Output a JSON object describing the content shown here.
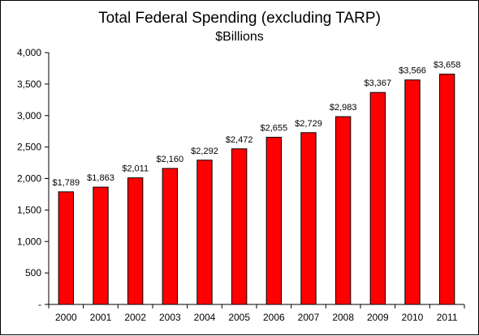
{
  "chart_data": {
    "type": "bar",
    "title": "Total Federal Spending (excluding TARP)",
    "subtitle": "$Billions",
    "xlabel": "",
    "ylabel": "",
    "categories": [
      "2000",
      "2001",
      "2002",
      "2003",
      "2004",
      "2005",
      "2006",
      "2007",
      "2008",
      "2009",
      "2010",
      "2011"
    ],
    "values": [
      1789,
      1863,
      2011,
      2160,
      2292,
      2472,
      2655,
      2729,
      2983,
      3367,
      3566,
      3658
    ],
    "data_labels": [
      "$1,789",
      "$1,863",
      "$2,011",
      "$2,160",
      "$2,292",
      "$2,472",
      "$2,655",
      "$2,729",
      "$2,983",
      "$3,367",
      "$3,566",
      "$3,658"
    ],
    "ylim": [
      0,
      4000
    ],
    "yticks": [
      0,
      500,
      1000,
      1500,
      2000,
      2500,
      3000,
      3500,
      4000
    ],
    "ytick_labels": [
      "-",
      "500",
      "1,000",
      "1,500",
      "2,000",
      "2,500",
      "3,000",
      "3,500",
      "4,000"
    ],
    "grid": false,
    "legend": "none",
    "bar_color": "#ff0000"
  }
}
